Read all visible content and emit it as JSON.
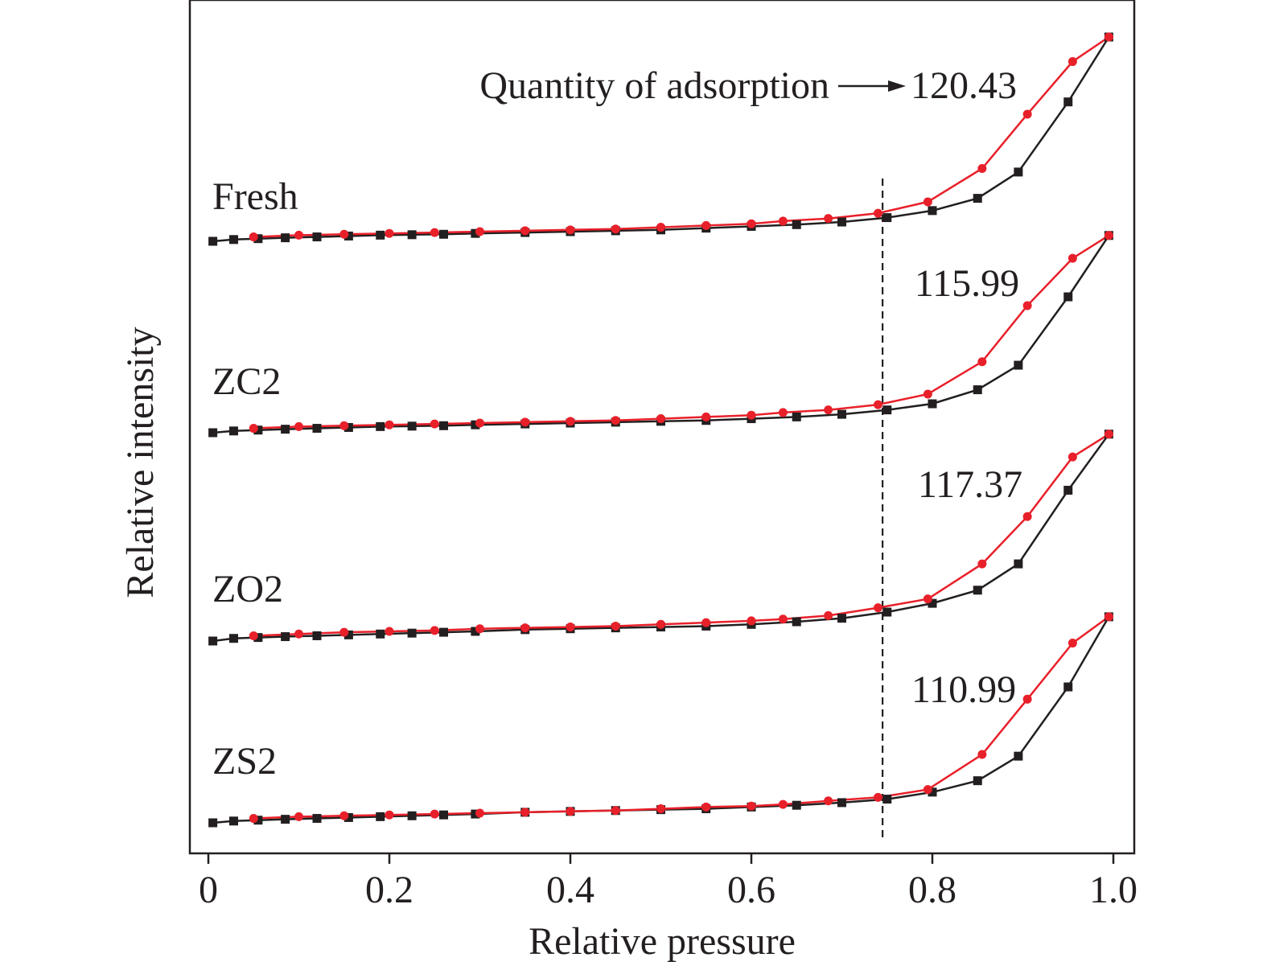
{
  "chart_data": {
    "type": "line",
    "xlabel": "Relative pressure",
    "ylabel": "Relative intensity",
    "xlim": [
      -0.02,
      1.02
    ],
    "xticks": [
      0,
      0.2,
      0.4,
      0.6,
      0.8,
      1.0
    ],
    "xtick_labels": [
      "0",
      "0.2",
      "0.4",
      "0.6",
      "0.8",
      "1.0"
    ],
    "y_tick_labels_shown": false,
    "grid": false,
    "reference_line": {
      "x": 0.745,
      "style": "dashed"
    },
    "annotation": {
      "text": "Quantity of adsorption",
      "arrow_to": "120.43"
    },
    "colors": {
      "adsorption": "#231f20",
      "desorption": "#e8202a"
    },
    "markers": {
      "adsorption": "square",
      "desorption": "circle"
    },
    "samples": [
      {
        "name": "Fresh",
        "value_label": "120.43",
        "adsorption": {
          "x": [
            0.005,
            0.028,
            0.055,
            0.085,
            0.12,
            0.155,
            0.19,
            0.225,
            0.26,
            0.295,
            0.35,
            0.4,
            0.45,
            0.5,
            0.55,
            0.6,
            0.65,
            0.7,
            0.75,
            0.8,
            0.85,
            0.895,
            0.95,
            0.995
          ],
          "y": [
            0.0,
            0.2,
            0.3,
            0.4,
            0.5,
            0.6,
            0.7,
            0.75,
            0.8,
            0.9,
            1.0,
            1.1,
            1.2,
            1.3,
            1.5,
            1.7,
            1.9,
            2.2,
            2.7,
            3.5,
            4.9,
            7.9,
            15.9,
            23.3
          ]
        },
        "desorption": {
          "x": [
            0.995,
            0.955,
            0.905,
            0.855,
            0.795,
            0.74,
            0.685,
            0.635,
            0.6,
            0.55,
            0.5,
            0.45,
            0.4,
            0.35,
            0.3,
            0.25,
            0.2,
            0.15,
            0.1,
            0.05
          ],
          "y": [
            23.3,
            20.5,
            14.5,
            8.3,
            4.5,
            3.2,
            2.6,
            2.3,
            2.0,
            1.8,
            1.6,
            1.4,
            1.3,
            1.2,
            1.1,
            1.0,
            0.9,
            0.8,
            0.7,
            0.5
          ]
        }
      },
      {
        "name": "ZC2",
        "value_label": "115.99",
        "adsorption": {
          "x": [
            0.005,
            0.028,
            0.055,
            0.085,
            0.12,
            0.155,
            0.19,
            0.225,
            0.26,
            0.295,
            0.35,
            0.4,
            0.45,
            0.5,
            0.55,
            0.6,
            0.65,
            0.7,
            0.75,
            0.8,
            0.85,
            0.895,
            0.95,
            0.995
          ],
          "y": [
            0.0,
            0.2,
            0.3,
            0.4,
            0.5,
            0.6,
            0.7,
            0.75,
            0.8,
            0.9,
            1.0,
            1.1,
            1.2,
            1.3,
            1.4,
            1.6,
            1.8,
            2.1,
            2.6,
            3.3,
            4.9,
            7.7,
            15.5,
            22.5
          ]
        },
        "desorption": {
          "x": [
            0.995,
            0.955,
            0.905,
            0.855,
            0.795,
            0.74,
            0.685,
            0.635,
            0.6,
            0.55,
            0.5,
            0.45,
            0.4,
            0.35,
            0.3,
            0.25,
            0.2,
            0.15,
            0.1,
            0.05
          ],
          "y": [
            22.5,
            19.9,
            14.5,
            8.1,
            4.4,
            3.2,
            2.6,
            2.3,
            2.0,
            1.8,
            1.6,
            1.4,
            1.3,
            1.2,
            1.1,
            1.0,
            0.9,
            0.8,
            0.7,
            0.5
          ]
        }
      },
      {
        "name": "ZO2",
        "value_label": "117.37",
        "adsorption": {
          "x": [
            0.005,
            0.028,
            0.055,
            0.085,
            0.12,
            0.155,
            0.19,
            0.225,
            0.26,
            0.295,
            0.35,
            0.4,
            0.45,
            0.5,
            0.55,
            0.6,
            0.65,
            0.7,
            0.75,
            0.8,
            0.85,
            0.895,
            0.95,
            0.995
          ],
          "y": [
            0.0,
            0.3,
            0.4,
            0.5,
            0.6,
            0.7,
            0.8,
            0.9,
            1.0,
            1.1,
            1.3,
            1.4,
            1.5,
            1.6,
            1.7,
            1.9,
            2.2,
            2.6,
            3.3,
            4.3,
            5.8,
            8.8,
            17.2,
            23.6
          ]
        },
        "desorption": {
          "x": [
            0.995,
            0.955,
            0.905,
            0.855,
            0.795,
            0.74,
            0.685,
            0.635,
            0.6,
            0.55,
            0.5,
            0.45,
            0.4,
            0.35,
            0.3,
            0.25,
            0.2,
            0.15,
            0.1,
            0.05
          ],
          "y": [
            23.6,
            21.0,
            14.2,
            8.8,
            4.8,
            3.8,
            2.9,
            2.5,
            2.3,
            2.1,
            1.9,
            1.7,
            1.6,
            1.5,
            1.4,
            1.2,
            1.1,
            1.0,
            0.8,
            0.6
          ]
        }
      },
      {
        "name": "ZS2",
        "value_label": "110.99",
        "adsorption": {
          "x": [
            0.005,
            0.028,
            0.055,
            0.085,
            0.12,
            0.155,
            0.19,
            0.225,
            0.26,
            0.295,
            0.35,
            0.4,
            0.45,
            0.5,
            0.55,
            0.6,
            0.65,
            0.7,
            0.75,
            0.8,
            0.85,
            0.895,
            0.95,
            0.995
          ],
          "y": [
            0.0,
            0.2,
            0.3,
            0.4,
            0.5,
            0.6,
            0.7,
            0.8,
            0.9,
            1.0,
            1.2,
            1.3,
            1.4,
            1.5,
            1.6,
            1.8,
            2.0,
            2.3,
            2.7,
            3.5,
            4.8,
            7.6,
            15.5,
            23.5
          ]
        },
        "desorption": {
          "x": [
            0.995,
            0.955,
            0.905,
            0.855,
            0.795,
            0.74,
            0.685,
            0.635,
            0.6,
            0.55,
            0.5,
            0.45,
            0.4,
            0.35,
            0.3,
            0.25,
            0.2,
            0.15,
            0.1,
            0.05
          ],
          "y": [
            23.5,
            20.5,
            14.1,
            7.8,
            3.8,
            2.9,
            2.5,
            2.1,
            1.9,
            1.8,
            1.6,
            1.4,
            1.3,
            1.2,
            1.1,
            1.0,
            0.9,
            0.8,
            0.7,
            0.5
          ]
        }
      }
    ]
  }
}
